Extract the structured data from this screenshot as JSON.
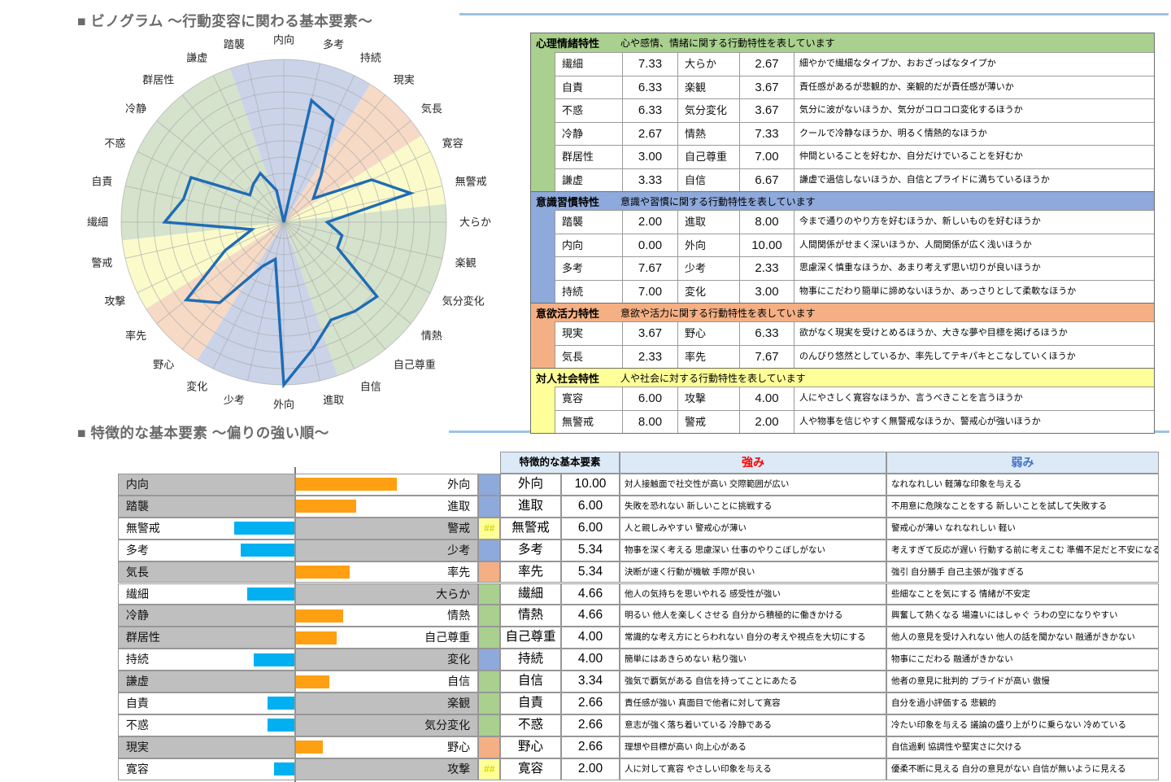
{
  "titles": {
    "radar_section": "■ ビノグラム ～行動変容に関わる基本要素～",
    "bias_section": "■ 特徴的な基本要素 ～偏りの強い順～"
  },
  "colors": {
    "category": {
      "emotion": "#A9D08E",
      "habit": "#8EA9DB",
      "drive": "#F4B084",
      "social": "#FFFF99"
    },
    "sector": {
      "emotion": "#D5E2CC",
      "habit": "#CAD3E8",
      "drive": "#F6DAC6",
      "social": "#FBFACA"
    },
    "radar_line": "#1E6CB5",
    "grid": "#ABABAB",
    "bar_right": "#FFA013",
    "bar_left": "#00B0F0",
    "row_gray": "#BFBFBF",
    "header_band": "#DCE9F7",
    "strength_red": "#FF0000",
    "weakness_blue": "#4472C4",
    "divider_blue": "#9DC3E6",
    "overflow_text": "#DCD800"
  },
  "chart_data": [
    {
      "type": "radar",
      "title": "ビノグラム 行動変容に関わる基本要素",
      "max": 10,
      "rings": 10,
      "axes": [
        "内向",
        "多考",
        "持続",
        "現実",
        "気長",
        "寛容",
        "無警戒",
        "大らか",
        "楽観",
        "気分変化",
        "情熱",
        "自己尊重",
        "自信",
        "進取",
        "外向",
        "少考",
        "変化",
        "野心",
        "率先",
        "攻撃",
        "警戒",
        "繊細",
        "自責",
        "不惑",
        "冷静",
        "群居性",
        "謙虚",
        "踏襲"
      ],
      "values": [
        0.0,
        7.67,
        7.0,
        3.67,
        2.33,
        6.0,
        8.0,
        2.67,
        3.67,
        3.67,
        7.33,
        7.0,
        6.67,
        8.0,
        10.0,
        2.33,
        3.0,
        6.33,
        7.67,
        4.0,
        2.0,
        7.33,
        6.33,
        6.33,
        2.67,
        3.0,
        3.33,
        2.0
      ],
      "groups": [
        {
          "first": -1,
          "count": 4,
          "cat": "habit"
        },
        {
          "first": 3,
          "count": 2,
          "cat": "drive"
        },
        {
          "first": 5,
          "count": 2,
          "cat": "social"
        },
        {
          "first": 7,
          "count": 6,
          "cat": "emotion"
        },
        {
          "first": 13,
          "count": 4,
          "cat": "habit"
        },
        {
          "first": 17,
          "count": 2,
          "cat": "drive"
        },
        {
          "first": 19,
          "count": 2,
          "cat": "social"
        },
        {
          "first": 21,
          "count": 6,
          "cat": "emotion"
        }
      ]
    },
    {
      "type": "bar",
      "title": "特徴的な基本要素 偏りの強い順",
      "axis_max": 10,
      "rows": [
        {
          "left": "内向",
          "right": "外向",
          "dominant": "right",
          "cat": "habit",
          "overflow": "",
          "trait": "外向",
          "score": "10.00",
          "score_num": 10.0,
          "strength": "対人接触面で社交性が高い 交際範囲が広い",
          "weakness": "なれなれしい 軽薄な印象を与える"
        },
        {
          "left": "踏襲",
          "right": "進取",
          "dominant": "right",
          "cat": "habit",
          "overflow": "",
          "trait": "進取",
          "score": "6.00",
          "score_num": 6.0,
          "strength": "失敗を恐れない 新しいことに挑戦する",
          "weakness": "不用意に危険なことをする 新しいことを試して失敗する"
        },
        {
          "left": "無警戒",
          "right": "警戒",
          "dominant": "left",
          "cat": "social",
          "overflow": "##",
          "trait": "無警戒",
          "score": "6.00",
          "score_num": 6.0,
          "strength": "人と親しみやすい 警戒心が薄い",
          "weakness": "警戒心が薄い なれなれしい 軽い"
        },
        {
          "left": "多考",
          "right": "少考",
          "dominant": "left",
          "cat": "habit",
          "overflow": "",
          "trait": "多考",
          "score": "5.34",
          "score_num": 5.34,
          "strength": "物事を深く考える 思慮深い 仕事のやりこぼしがない",
          "weakness": "考えすぎて反応が遅い 行動する前に考えこむ 準備不足だと不安になる"
        },
        {
          "left": "気長",
          "right": "率先",
          "dominant": "right",
          "cat": "drive",
          "overflow": "",
          "trait": "率先",
          "score": "5.34",
          "score_num": 5.34,
          "strength": "決断が速く行動が機敏 手際が良い",
          "weakness": "強引 自分勝手 自己主張が強すぎる"
        },
        {
          "left": "繊細",
          "right": "大らか",
          "dominant": "left",
          "cat": "emotion",
          "overflow": "",
          "trait": "繊細",
          "score": "4.66",
          "score_num": 4.66,
          "strength": "他人の気持ちを思いやれる 感受性が強い",
          "weakness": "些細なことを気にする 情緒が不安定"
        },
        {
          "left": "冷静",
          "right": "情熱",
          "dominant": "right",
          "cat": "emotion",
          "overflow": "",
          "trait": "情熱",
          "score": "4.66",
          "score_num": 4.66,
          "strength": "明るい 他人を楽しくさせる 自分から積極的に働きかける",
          "weakness": "興奮して熱くなる 場違いにはしゃぐ うわの空になりやすい"
        },
        {
          "left": "群居性",
          "right": "自己尊重",
          "dominant": "right",
          "cat": "emotion",
          "overflow": "",
          "trait": "自己尊重",
          "score": "4.00",
          "score_num": 4.0,
          "strength": "常識的な考え方にとらわれない 自分の考えや視点を大切にする",
          "weakness": "他人の意見を受け入れない 他人の話を聞かない 融通がきかない"
        },
        {
          "left": "持続",
          "right": "変化",
          "dominant": "left",
          "cat": "habit",
          "overflow": "",
          "trait": "持続",
          "score": "4.00",
          "score_num": 4.0,
          "strength": "簡単にはあきらめない 粘り強い",
          "weakness": "物事にこだわる 融通がきかない"
        },
        {
          "left": "謙虚",
          "right": "自信",
          "dominant": "right",
          "cat": "emotion",
          "overflow": "",
          "trait": "自信",
          "score": "3.34",
          "score_num": 3.34,
          "strength": "強気で覇気がある 自信を持ってことにあたる",
          "weakness": "他者の意見に批判的 プライドが高い 傲慢"
        },
        {
          "left": "自責",
          "right": "楽観",
          "dominant": "left",
          "cat": "emotion",
          "overflow": "",
          "trait": "自責",
          "score": "2.66",
          "score_num": 2.66,
          "strength": "責任感が強い 真面目で他者に対して寛容",
          "weakness": "自分を過小評価する 悲観的"
        },
        {
          "left": "不惑",
          "right": "気分変化",
          "dominant": "left",
          "cat": "emotion",
          "overflow": "",
          "trait": "不惑",
          "score": "2.66",
          "score_num": 2.66,
          "strength": "意志が強く落ち着いている 冷静である",
          "weakness": "冷たい印象を与える 議論の盛り上がりに乗らない 冷めている"
        },
        {
          "left": "現実",
          "right": "野心",
          "dominant": "right",
          "cat": "drive",
          "overflow": "",
          "trait": "野心",
          "score": "2.66",
          "score_num": 2.66,
          "strength": "理想や目標が高い 向上心がある",
          "weakness": "自信過剰 協調性や堅実さに欠ける"
        },
        {
          "left": "寛容",
          "right": "攻撃",
          "dominant": "left",
          "cat": "social",
          "overflow": "##",
          "trait": "寛容",
          "score": "2.00",
          "score_num": 2.0,
          "strength": "人に対して寛容 やさしい印象を与える",
          "weakness": "優柔不断に見える 自分の意見がない 自信が無いように見える"
        }
      ]
    }
  ],
  "trait_table": {
    "sections": [
      {
        "cat": "emotion",
        "title": "心理情緒特性",
        "desc": "心や感情、情緒に関する行動特性を表しています",
        "rows": [
          {
            "left": "繊細",
            "lv": "7.33",
            "right": "大らか",
            "rv": "2.67",
            "desc": "細やかで繊細なタイプか、おおざっぱなタイプか"
          },
          {
            "left": "自責",
            "lv": "6.33",
            "right": "楽観",
            "rv": "3.67",
            "desc": "責任感があるが悲観的か、楽観的だが責任感が薄いか"
          },
          {
            "left": "不惑",
            "lv": "6.33",
            "right": "気分変化",
            "rv": "3.67",
            "desc": "気分に波がないほうか、気分がコロコロ変化するほうか"
          },
          {
            "left": "冷静",
            "lv": "2.67",
            "right": "情熱",
            "rv": "7.33",
            "desc": "クールで冷静なほうか、明るく情熱的なほうか"
          },
          {
            "left": "群居性",
            "lv": "3.00",
            "right": "自己尊重",
            "rv": "7.00",
            "desc": "仲間といることを好むか、自分だけでいることを好むか"
          },
          {
            "left": "謙虚",
            "lv": "3.33",
            "right": "自信",
            "rv": "6.67",
            "desc": "謙虚で過信しないほうか、自信とプライドに満ちているほうか"
          }
        ]
      },
      {
        "cat": "habit",
        "title": "意識習慣特性",
        "desc": "意識や習慣に関する行動特性を表しています",
        "rows": [
          {
            "left": "踏襲",
            "lv": "2.00",
            "right": "進取",
            "rv": "8.00",
            "desc": "今まで通りのやり方を好むほうか、新しいものを好むほうか"
          },
          {
            "left": "内向",
            "lv": "0.00",
            "right": "外向",
            "rv": "10.00",
            "desc": "人間関係がせまく深いほうか、人間関係が広く浅いほうか"
          },
          {
            "left": "多考",
            "lv": "7.67",
            "right": "少考",
            "rv": "2.33",
            "desc": "思慮深く慎重なほうか、あまり考えず思い切りが良いほうか"
          },
          {
            "left": "持続",
            "lv": "7.00",
            "right": "変化",
            "rv": "3.00",
            "desc": "物事にこだわり簡単に諦めないほうか、あっさりとして柔軟なほうか"
          }
        ]
      },
      {
        "cat": "drive",
        "title": "意欲活力特性",
        "desc": "意欲や活力に関する行動特性を表しています",
        "rows": [
          {
            "left": "現実",
            "lv": "3.67",
            "right": "野心",
            "rv": "6.33",
            "desc": "欲がなく現実を受けとめるほうか、大きな夢や目標を掲げるほうか"
          },
          {
            "left": "気長",
            "lv": "2.33",
            "right": "率先",
            "rv": "7.67",
            "desc": "のんびり悠然としているか、率先してテキパキとこなしていくほうか"
          }
        ]
      },
      {
        "cat": "social",
        "title": "対人社会特性",
        "desc": "人や社会に対する行動特性を表しています",
        "rows": [
          {
            "left": "寛容",
            "lv": "6.00",
            "right": "攻撃",
            "rv": "4.00",
            "desc": "人にやさしく寛容なほうか、言うべきことを言うほうか"
          },
          {
            "left": "無警戒",
            "lv": "8.00",
            "right": "警戒",
            "rv": "2.00",
            "desc": "人や物事を信じやすく無警戒なほうか、警戒心が強いほうか"
          }
        ]
      }
    ]
  },
  "bias_table_headers": {
    "trait": "特徴的な基本要素",
    "strength": "強み",
    "weakness": "弱み"
  }
}
